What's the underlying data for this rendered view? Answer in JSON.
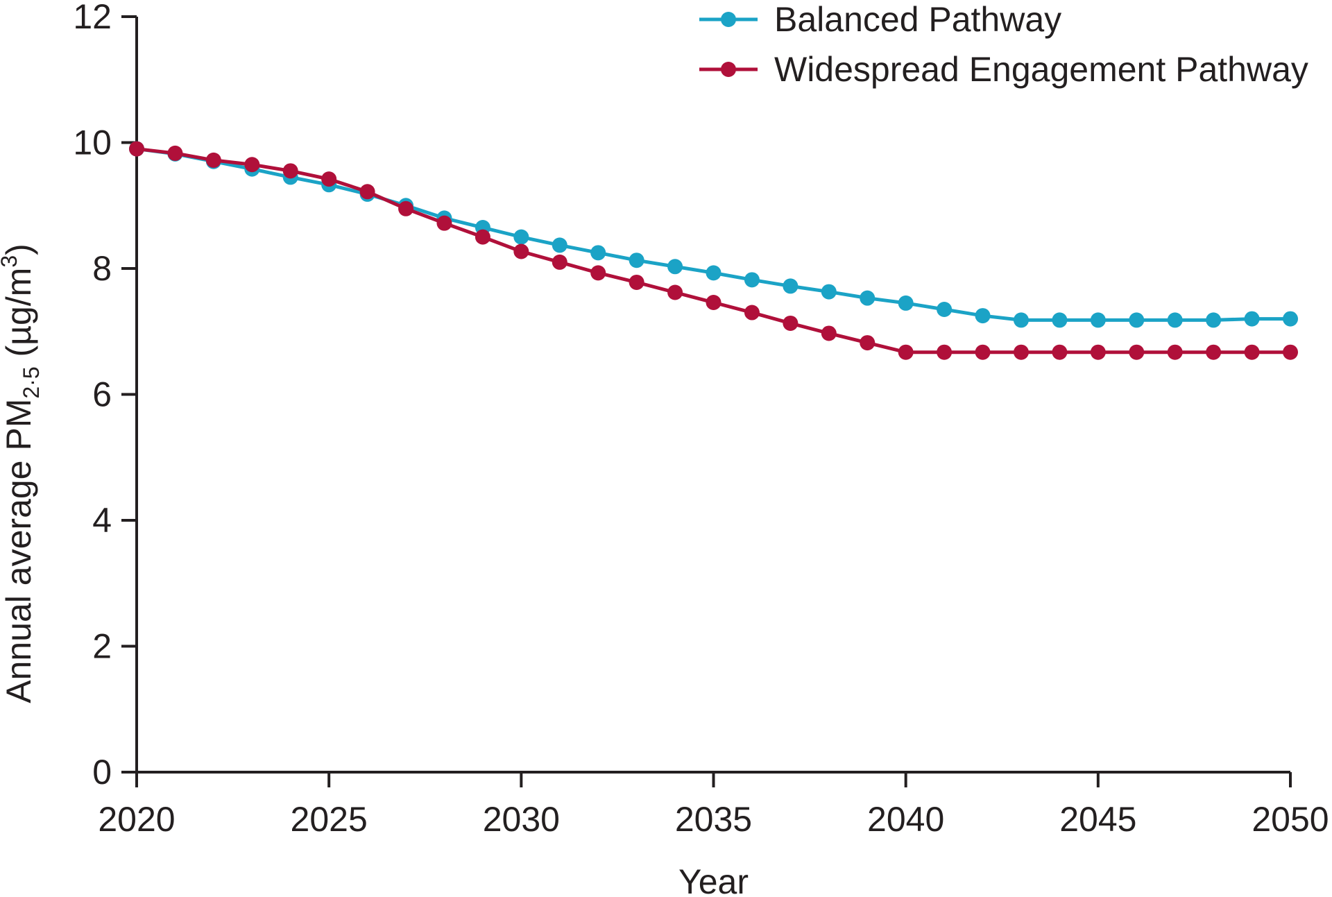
{
  "chart_data": {
    "type": "line",
    "xlabel": "Year",
    "ylabel": {
      "prefix": "Annual average PM",
      "subscript": "2·5",
      "middle": " (µg/m",
      "superscript": "3",
      "suffix": ")"
    },
    "xlim": [
      2020,
      2050
    ],
    "ylim": [
      0,
      12
    ],
    "xticks": [
      2020,
      2025,
      2030,
      2035,
      2040,
      2045,
      2050
    ],
    "yticks": [
      0,
      2,
      4,
      6,
      8,
      10,
      12
    ],
    "grid": false,
    "legend_position": "top-right",
    "x": [
      2020,
      2021,
      2022,
      2023,
      2024,
      2025,
      2026,
      2027,
      2028,
      2029,
      2030,
      2031,
      2032,
      2033,
      2034,
      2035,
      2036,
      2037,
      2038,
      2039,
      2040,
      2041,
      2042,
      2043,
      2044,
      2045,
      2046,
      2047,
      2048,
      2049,
      2050
    ],
    "series": [
      {
        "name": "Balanced Pathway",
        "color": "#1ba3c6",
        "values": [
          9.9,
          9.82,
          9.7,
          9.58,
          9.45,
          9.33,
          9.18,
          9.0,
          8.8,
          8.65,
          8.5,
          8.37,
          8.25,
          8.13,
          8.03,
          7.93,
          7.82,
          7.72,
          7.63,
          7.53,
          7.45,
          7.35,
          7.25,
          7.18,
          7.18,
          7.18,
          7.18,
          7.18,
          7.18,
          7.2,
          7.2
        ]
      },
      {
        "name": "Widespread Engagement Pathway",
        "color": "#b0103a",
        "values": [
          9.9,
          9.83,
          9.72,
          9.65,
          9.55,
          9.42,
          9.22,
          8.95,
          8.72,
          8.5,
          8.27,
          8.1,
          7.93,
          7.78,
          7.62,
          7.46,
          7.3,
          7.13,
          6.97,
          6.82,
          6.67,
          6.67,
          6.67,
          6.67,
          6.67,
          6.67,
          6.67,
          6.67,
          6.67,
          6.67,
          6.67
        ]
      }
    ]
  }
}
